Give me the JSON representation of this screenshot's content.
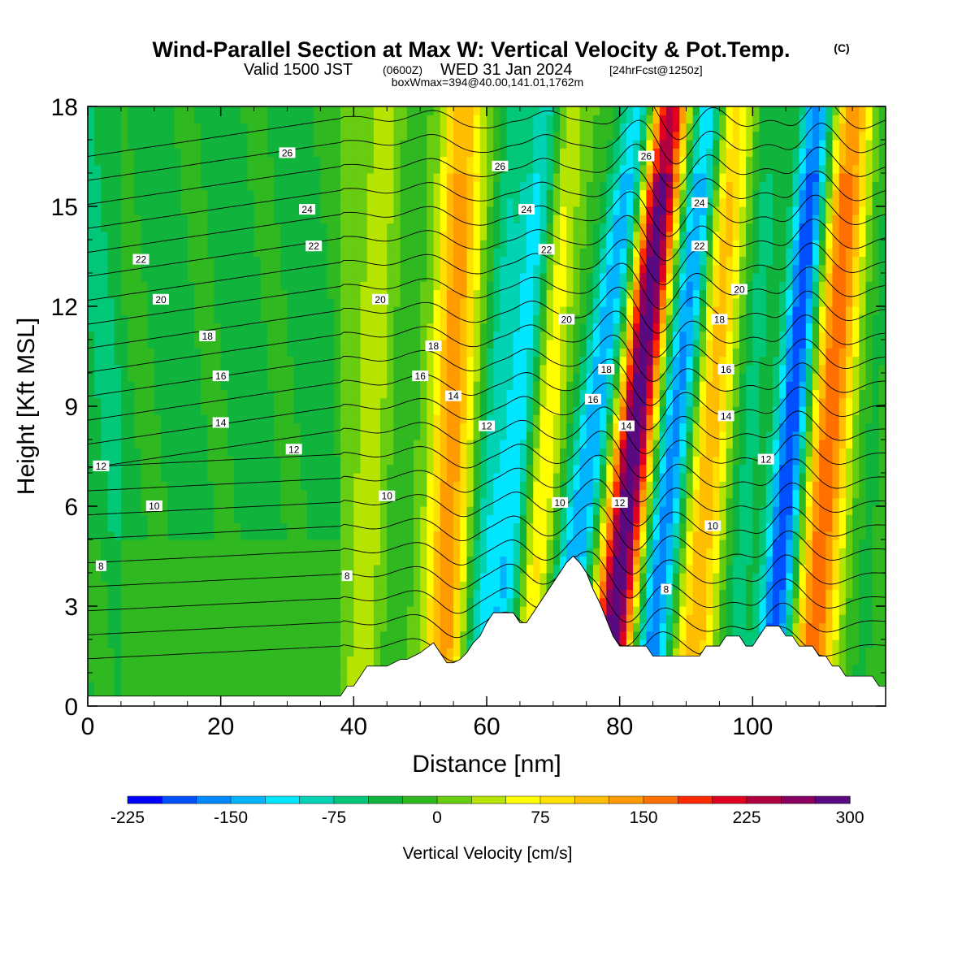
{
  "title": {
    "main": "Wind-Parallel Section at Max W: Vertical Velocity & Pot.Temp.",
    "copyright": "(C)",
    "valid_prefix": "Valid 1500 JST",
    "valid_utc": "(0600Z)",
    "valid_date": "WED 31 Jan 2024",
    "forecast": "[24hrFcst@1250z]",
    "box_info": "boxWmax=394@40.00,141.01,1762m"
  },
  "chart_data": {
    "type": "heatmap",
    "title": "Wind-Parallel Section at Max W: Vertical Velocity & Pot.Temp.",
    "xlabel": "Distance [nm]",
    "ylabel": "Height [Kft MSL]",
    "xlim": [
      0,
      120
    ],
    "ylim": [
      0,
      18
    ],
    "x_ticks": [
      "0",
      "20",
      "40",
      "60",
      "80",
      "100"
    ],
    "x_tick_values": [
      0,
      20,
      40,
      60,
      80,
      100
    ],
    "y_ticks": [
      "0",
      "3",
      "6",
      "9",
      "12",
      "15",
      "18"
    ],
    "y_tick_values": [
      0,
      3,
      6,
      9,
      12,
      15,
      18
    ],
    "colorbar": {
      "label": "Vertical Velocity [cm/s]",
      "tick_labels": [
        "-225",
        "-150",
        "-75",
        "0",
        "75",
        "150",
        "225",
        "300"
      ],
      "tick_values": [
        -225,
        -150,
        -75,
        0,
        75,
        150,
        225,
        300
      ],
      "levels": [
        -225,
        -200,
        -175,
        -150,
        -125,
        -100,
        -75,
        -50,
        -25,
        0,
        25,
        50,
        75,
        100,
        125,
        150,
        175,
        200,
        225,
        250,
        275,
        300,
        325,
        350
      ],
      "colors": [
        "#0000ff",
        "#0050ff",
        "#0088ff",
        "#00b4ff",
        "#00e6ff",
        "#00d2b4",
        "#00c878",
        "#10b43c",
        "#30b820",
        "#68cc10",
        "#b4e400",
        "#ffff00",
        "#ffe000",
        "#ffbf00",
        "#ff9a00",
        "#ff7000",
        "#ff2a00",
        "#e00020",
        "#b00040",
        "#880060",
        "#5a0a80"
      ]
    },
    "contours": {
      "name": "Pot.Temp.",
      "labeled_levels": [
        8,
        10,
        12,
        14,
        16,
        18,
        20,
        22,
        24,
        26
      ],
      "labels": [
        {
          "text": "8",
          "x": 2,
          "y": 4.2
        },
        {
          "text": "8",
          "x": 39,
          "y": 3.9
        },
        {
          "text": "8",
          "x": 87,
          "y": 3.5
        },
        {
          "text": "10",
          "x": 10,
          "y": 6.0
        },
        {
          "text": "10",
          "x": 45,
          "y": 6.3
        },
        {
          "text": "10",
          "x": 71,
          "y": 6.1
        },
        {
          "text": "10",
          "x": 94,
          "y": 5.4
        },
        {
          "text": "12",
          "x": 2,
          "y": 7.2
        },
        {
          "text": "12",
          "x": 31,
          "y": 7.7
        },
        {
          "text": "12",
          "x": 60,
          "y": 8.4
        },
        {
          "text": "12",
          "x": 80,
          "y": 6.1
        },
        {
          "text": "12",
          "x": 102,
          "y": 7.4
        },
        {
          "text": "14",
          "x": 20,
          "y": 8.5
        },
        {
          "text": "14",
          "x": 55,
          "y": 9.3
        },
        {
          "text": "14",
          "x": 81,
          "y": 8.4
        },
        {
          "text": "14",
          "x": 96,
          "y": 8.7
        },
        {
          "text": "16",
          "x": 20,
          "y": 9.9
        },
        {
          "text": "16",
          "x": 50,
          "y": 9.9
        },
        {
          "text": "16",
          "x": 76,
          "y": 9.2
        },
        {
          "text": "16",
          "x": 96,
          "y": 10.1
        },
        {
          "text": "18",
          "x": 18,
          "y": 11.1
        },
        {
          "text": "18",
          "x": 52,
          "y": 10.8
        },
        {
          "text": "18",
          "x": 78,
          "y": 10.1
        },
        {
          "text": "18",
          "x": 95,
          "y": 11.6
        },
        {
          "text": "20",
          "x": 11,
          "y": 12.2
        },
        {
          "text": "20",
          "x": 44,
          "y": 12.2
        },
        {
          "text": "20",
          "x": 72,
          "y": 11.6
        },
        {
          "text": "20",
          "x": 98,
          "y": 12.5
        },
        {
          "text": "22",
          "x": 8,
          "y": 13.4
        },
        {
          "text": "22",
          "x": 34,
          "y": 13.8
        },
        {
          "text": "22",
          "x": 69,
          "y": 13.7
        },
        {
          "text": "22",
          "x": 92,
          "y": 13.8
        },
        {
          "text": "24",
          "x": 33,
          "y": 14.9
        },
        {
          "text": "24",
          "x": 66,
          "y": 14.9
        },
        {
          "text": "24",
          "x": 92,
          "y": 15.1
        },
        {
          "text": "26",
          "x": 30,
          "y": 16.6
        },
        {
          "text": "26",
          "x": 62,
          "y": 16.2
        },
        {
          "text": "26",
          "x": 84,
          "y": 16.5
        }
      ]
    },
    "terrain": {
      "x": [
        0,
        5,
        10,
        15,
        20,
        25,
        30,
        35,
        38,
        39,
        40,
        41,
        42,
        43,
        45,
        47,
        48,
        50,
        52,
        53,
        54,
        55,
        56,
        57,
        58,
        59,
        60,
        61,
        62,
        63,
        64,
        65,
        66,
        67,
        68,
        69,
        70,
        71,
        72,
        73,
        74,
        75,
        76,
        77,
        78,
        79,
        80,
        81,
        82,
        83,
        84,
        85,
        86,
        87,
        88,
        89,
        90,
        91,
        92,
        93,
        94,
        95,
        96,
        97,
        98,
        99,
        100,
        101,
        102,
        103,
        104,
        105,
        106,
        107,
        108,
        109,
        110,
        111,
        112,
        113,
        114,
        115,
        116,
        117,
        118,
        119,
        120
      ],
      "y": [
        0.3,
        0.3,
        0.3,
        0.3,
        0.3,
        0.3,
        0.3,
        0.3,
        0.3,
        0.6,
        0.6,
        0.9,
        1.2,
        1.2,
        1.2,
        1.4,
        1.4,
        1.6,
        1.9,
        1.6,
        1.3,
        1.3,
        1.4,
        1.6,
        1.9,
        2.1,
        2.5,
        2.8,
        2.8,
        2.8,
        2.8,
        2.5,
        2.5,
        2.8,
        3.1,
        3.4,
        3.7,
        4.0,
        4.3,
        4.5,
        4.3,
        4.0,
        3.5,
        3.1,
        2.6,
        2.1,
        1.8,
        1.8,
        1.8,
        1.8,
        1.8,
        1.5,
        1.5,
        1.5,
        1.5,
        1.5,
        1.5,
        1.5,
        1.5,
        1.8,
        1.8,
        1.8,
        2.1,
        2.1,
        2.1,
        1.8,
        1.8,
        2.1,
        2.4,
        2.4,
        2.4,
        2.1,
        2.1,
        1.8,
        1.8,
        1.8,
        1.5,
        1.5,
        1.2,
        1.2,
        0.9,
        0.9,
        0.9,
        0.9,
        0.9,
        0.6,
        0.6
      ]
    },
    "wave_bands": [
      {
        "x": 42,
        "w": 40,
        "width": 3.0,
        "tilt": 0.15
      },
      {
        "x": 46,
        "w": -20,
        "width": 2.5,
        "tilt": 0.2
      },
      {
        "x": 54,
        "w": 140,
        "width": 3.0,
        "tilt": 0.15
      },
      {
        "x": 59,
        "w": -60,
        "width": 2.0,
        "tilt": 0.3
      },
      {
        "x": 63,
        "w": -130,
        "width": 3.5,
        "tilt": 0.4
      },
      {
        "x": 67,
        "w": 110,
        "width": 2.5,
        "tilt": 0.3
      },
      {
        "x": 73,
        "w": -150,
        "width": 3.0,
        "tilt": 0.6
      },
      {
        "x": 80,
        "w": 300,
        "width": 3.0,
        "tilt": 0.45
      },
      {
        "x": 86,
        "w": -170,
        "width": 2.8,
        "tilt": 0.45
      },
      {
        "x": 92,
        "w": 120,
        "width": 3.0,
        "tilt": 0.3
      },
      {
        "x": 98,
        "w": -60,
        "width": 2.5,
        "tilt": 0.3
      },
      {
        "x": 104,
        "w": -200,
        "width": 2.5,
        "tilt": 0.35
      },
      {
        "x": 110,
        "w": 170,
        "width": 3.0,
        "tilt": 0.3
      },
      {
        "x": 117,
        "w": -30,
        "width": 2.5,
        "tilt": 0.2
      }
    ]
  }
}
